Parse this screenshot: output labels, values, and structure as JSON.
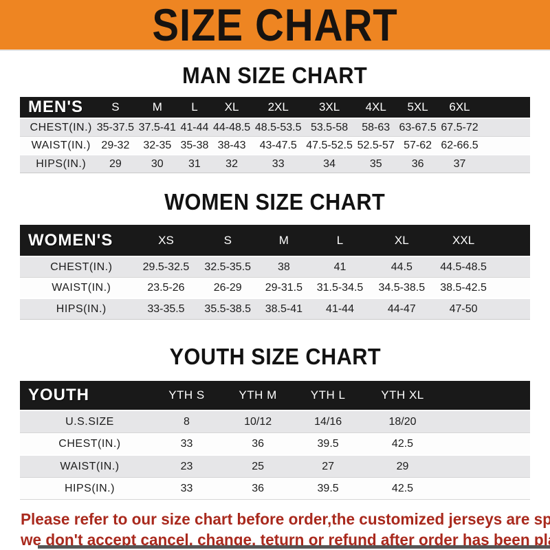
{
  "banner": {
    "title": "SIZE CHART",
    "bg_color": "#ee8522",
    "text_color": "#171310"
  },
  "sections": [
    {
      "title": "MAN SIZE CHART",
      "table": {
        "header_label": "MEN'S",
        "columns": [
          "S",
          "M",
          "L",
          "XL",
          "2XL",
          "3XL",
          "4XL",
          "5XL",
          "6XL"
        ],
        "rows": [
          {
            "label": "CHEST(IN.)",
            "values": [
              "35-37.5",
              "37.5-41",
              "41-44",
              "44-48.5",
              "48.5-53.5",
              "53.5-58",
              "58-63",
              "63-67.5",
              "67.5-72"
            ]
          },
          {
            "label": "WAIST(IN.)",
            "values": [
              "29-32",
              "32-35",
              "35-38",
              "38-43",
              "43-47.5",
              "47.5-52.5",
              "52.5-57",
              "57-62",
              "62-66.5"
            ]
          },
          {
            "label": "HIPS(IN.)",
            "values": [
              "29",
              "30",
              "31",
              "32",
              "33",
              "34",
              "35",
              "36",
              "37"
            ]
          }
        ]
      }
    },
    {
      "title": "WOMEN SIZE CHART",
      "table": {
        "header_label": "WOMEN'S",
        "columns": [
          "XS",
          "S",
          "M",
          "L",
          "XL",
          "XXL"
        ],
        "rows": [
          {
            "label": "CHEST(IN.)",
            "values": [
              "29.5-32.5",
              "32.5-35.5",
              "38",
              "41",
              "44.5",
              "44.5-48.5"
            ]
          },
          {
            "label": "WAIST(IN.)",
            "values": [
              "23.5-26",
              "26-29",
              "29-31.5",
              "31.5-34.5",
              "34.5-38.5",
              "38.5-42.5"
            ]
          },
          {
            "label": "HIPS(IN.)",
            "values": [
              "33-35.5",
              "35.5-38.5",
              "38.5-41",
              "41-44",
              "44-47",
              "47-50"
            ]
          }
        ]
      }
    },
    {
      "title": "YOUTH SIZE CHART",
      "table": {
        "header_label": "YOUTH",
        "columns": [
          "YTH S",
          "YTH M",
          "YTH L",
          "YTH XL"
        ],
        "rows": [
          {
            "label": "U.S.SIZE",
            "values": [
              "8",
              "10/12",
              "14/16",
              "18/20"
            ]
          },
          {
            "label": "CHEST(IN.)",
            "values": [
              "33",
              "36",
              "39.5",
              "42.5"
            ]
          },
          {
            "label": "WAIST(IN.)",
            "values": [
              "23",
              "25",
              "27",
              "29"
            ]
          },
          {
            "label": "HIPS(IN.)",
            "values": [
              "33",
              "36",
              "39.5",
              "42.5"
            ]
          }
        ]
      }
    }
  ],
  "footer": {
    "line1": "Please refer to our size chart before order,the customized jerseys are special products,",
    "line2": "we don't accept cancel, change, teturn or refund after order has been placed!",
    "text_color": "#a9291d"
  },
  "colors": {
    "accent_orange": "#ee8522",
    "bar_black": "#191919",
    "row_gray": "#e6e6e8",
    "footer_red": "#a9291d"
  }
}
